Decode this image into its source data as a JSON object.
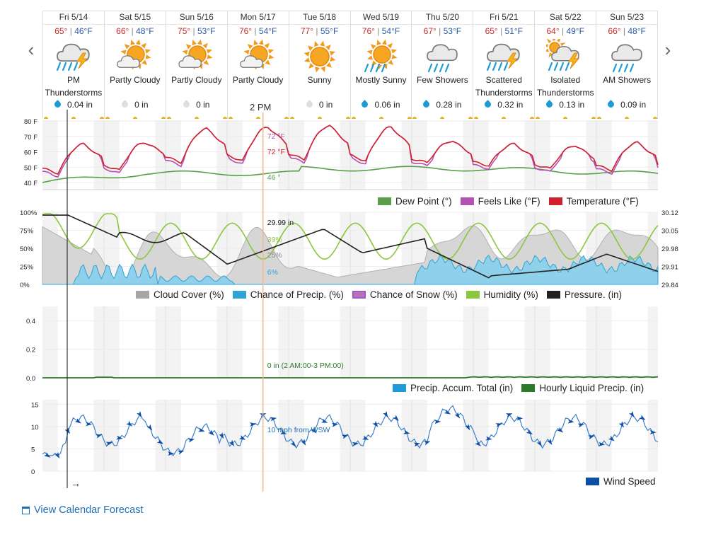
{
  "nav": {
    "prev": "‹",
    "next": "›"
  },
  "days": [
    {
      "date": "Fri 5/14",
      "hi": "65°",
      "lo": "46°F",
      "cond": "PM Thunderstorms",
      "icon": "thunderstorm-icon",
      "precip": "0.04 in",
      "drop": "blue"
    },
    {
      "date": "Sat 5/15",
      "hi": "66°",
      "lo": "48°F",
      "cond": "Partly Cloudy",
      "icon": "partly-cloudy-icon",
      "precip": "0 in",
      "drop": "gray"
    },
    {
      "date": "Sun 5/16",
      "hi": "75°",
      "lo": "53°F",
      "cond": "Partly Cloudy",
      "icon": "partly-cloudy-icon",
      "precip": "0 in",
      "drop": "gray"
    },
    {
      "date": "Mon 5/17",
      "hi": "76°",
      "lo": "54°F",
      "cond": "Partly Cloudy",
      "icon": "partly-cloudy-icon",
      "precip": "",
      "drop": "gray"
    },
    {
      "date": "Tue 5/18",
      "hi": "77°",
      "lo": "55°F",
      "cond": "Sunny",
      "icon": "sunny-icon",
      "precip": "0 in",
      "drop": "gray"
    },
    {
      "date": "Wed 5/19",
      "hi": "76°",
      "lo": "54°F",
      "cond": "Mostly Sunny",
      "icon": "mostly-sunny-icon",
      "precip": "0.06 in",
      "drop": "blue"
    },
    {
      "date": "Thu 5/20",
      "hi": "67°",
      "lo": "53°F",
      "cond": "Few Showers",
      "icon": "showers-icon",
      "precip": "0.28 in",
      "drop": "blue"
    },
    {
      "date": "Fri 5/21",
      "hi": "65°",
      "lo": "51°F",
      "cond": "Scattered Thunderstorms",
      "icon": "thunderstorm-icon",
      "precip": "0.32 in",
      "drop": "blue"
    },
    {
      "date": "Sat 5/22",
      "hi": "64°",
      "lo": "49°F",
      "cond": "Isolated Thunderstorms",
      "icon": "sun-thunderstorm-icon",
      "precip": "0.13 in",
      "drop": "blue"
    },
    {
      "date": "Sun 5/23",
      "hi": "66°",
      "lo": "48°F",
      "cond": "AM Showers",
      "icon": "showers-icon",
      "precip": "0.09 in",
      "drop": "blue"
    }
  ],
  "now_label": "2 PM",
  "colors": {
    "temperature": "#d0202e",
    "feels_like": "#b452b4",
    "dew_point": "#5a9e4a",
    "cloud_cover": "#a6a6a6",
    "chance_precip": "#2ea3d4",
    "chance_snow": "#b673b6",
    "humidity": "#8cc63f",
    "pressure": "#222222",
    "precip_accum": "#1d9bd6",
    "hourly_liquid": "#2b7a2b",
    "wind_speed": "#0d4ea6",
    "now_line": "#f4b98a"
  },
  "temp_panel": {
    "y_ticks": [
      "80 F",
      "70 F",
      "60 F",
      "50 F",
      "40 F"
    ],
    "readout_feels": "72 °F",
    "readout_temp": "72 °F",
    "readout_dew": "46 °",
    "legend": [
      "Dew Point (°)",
      "Feels Like (°F)",
      "Temperature (°F)"
    ]
  },
  "cloud_panel": {
    "y_ticks_left": [
      "100%",
      "75%",
      "50%",
      "25%",
      "0%"
    ],
    "y_ticks_right": [
      "30.12",
      "30.05",
      "29.98",
      "29.91",
      "29.84"
    ],
    "readout_pressure": "29.99 in",
    "readout_humidity": "39%",
    "readout_cloud": "25%",
    "readout_precip": "6%",
    "legend": [
      "Cloud Cover (%)",
      "Chance of Precip. (%)",
      "Chance of Snow (%)",
      "Humidity (%)",
      "Pressure. (in)"
    ]
  },
  "precip_panel": {
    "y_ticks": [
      "0.4",
      "0.2",
      "0.0"
    ],
    "readout": "0 in (2 AM:00-3 PM:00)",
    "legend": [
      "Precip. Accum. Total (in)",
      "Hourly Liquid Precip. (in)"
    ]
  },
  "wind_panel": {
    "y_ticks": [
      "15",
      "10",
      "5",
      "0"
    ],
    "readout": "10 mph from WSW",
    "legend": [
      "Wind Speed"
    ],
    "arrow": "→"
  },
  "calendar_link": "View Calendar Forecast"
}
